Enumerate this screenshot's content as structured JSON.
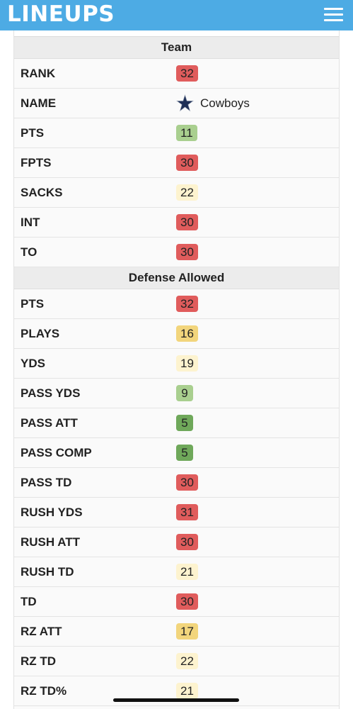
{
  "header": {
    "logo_text": "LINEUPS",
    "menu_icon": "hamburger-menu-icon"
  },
  "colors": {
    "brand": "#4dabe4",
    "red": "#e05c5c",
    "light_green": "#a9cf8f",
    "green": "#6fa85a",
    "yellow": "#f2d57c",
    "cream": "#fdf3cf"
  },
  "team": {
    "title": "Team",
    "rank": {
      "label": "RANK",
      "value": "32"
    },
    "name": {
      "label": "NAME",
      "value": "Cowboys",
      "icon": "cowboys-star-icon"
    },
    "pts": {
      "label": "PTS",
      "value": "11"
    },
    "fpts": {
      "label": "FPTS",
      "value": "30"
    },
    "sacks": {
      "label": "SACKS",
      "value": "22"
    },
    "int": {
      "label": "INT",
      "value": "30"
    },
    "to": {
      "label": "TO",
      "value": "30"
    }
  },
  "defense": {
    "title": "Defense Allowed",
    "rows": [
      {
        "label": "PTS",
        "value": "32"
      },
      {
        "label": "PLAYS",
        "value": "16"
      },
      {
        "label": "YDS",
        "value": "19"
      },
      {
        "label": "PASS YDS",
        "value": "9"
      },
      {
        "label": "PASS ATT",
        "value": "5"
      },
      {
        "label": "PASS COMP",
        "value": "5"
      },
      {
        "label": "PASS TD",
        "value": "30"
      },
      {
        "label": "RUSH YDS",
        "value": "31"
      },
      {
        "label": "RUSH ATT",
        "value": "30"
      },
      {
        "label": "RUSH TD",
        "value": "21"
      },
      {
        "label": "TD",
        "value": "30"
      },
      {
        "label": "RZ ATT",
        "value": "17"
      },
      {
        "label": "RZ TD",
        "value": "22"
      },
      {
        "label": "RZ TD%",
        "value": "21"
      }
    ]
  }
}
